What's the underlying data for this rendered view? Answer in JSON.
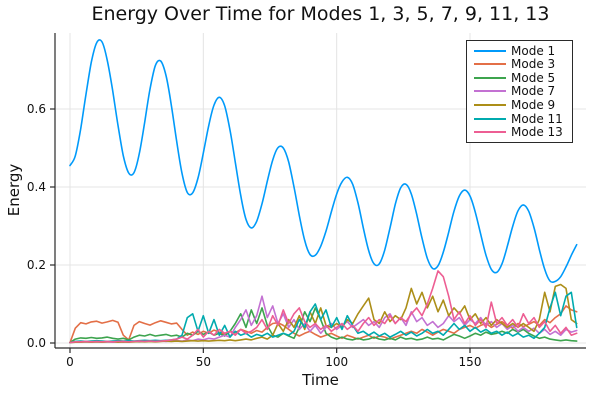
{
  "chart_data": {
    "type": "line",
    "title": "Energy Over Time for Modes 1, 3, 5, 7, 9, 11, 13",
    "xlabel": "Time",
    "ylabel": "Energy",
    "xlim": [
      -5.6,
      193.5
    ],
    "ylim": [
      -0.013,
      0.795
    ],
    "grid": true,
    "legend_position": "top-right",
    "xticks": {
      "values": [
        0,
        50,
        100,
        150
      ],
      "labels": [
        "0",
        "50",
        "100",
        "150"
      ]
    },
    "yticks": {
      "values": [
        0.0,
        0.2,
        0.4,
        0.6
      ],
      "labels": [
        "0.0",
        "0.2",
        "0.4",
        "0.6"
      ]
    },
    "style": {
      "background": "#FFFFFF",
      "grid_color": "#E4E4E4",
      "axis_color": "#2A2A2A",
      "text_color": "#111111",
      "legend_border_color": "#2A2A2A",
      "series_line_width": 1.6
    },
    "x": [
      0,
      2,
      4,
      6,
      8,
      10,
      12,
      14,
      16,
      18,
      20,
      22,
      24,
      26,
      28,
      30,
      32,
      34,
      36,
      38,
      40,
      42,
      44,
      46,
      48,
      50,
      52,
      54,
      56,
      58,
      60,
      62,
      64,
      66,
      68,
      70,
      72,
      74,
      76,
      78,
      80,
      82,
      84,
      86,
      88,
      90,
      92,
      94,
      96,
      98,
      100,
      102,
      104,
      106,
      108,
      110,
      112,
      114,
      116,
      118,
      120,
      122,
      124,
      126,
      128,
      130,
      132,
      134,
      136,
      138,
      140,
      142,
      144,
      146,
      148,
      150,
      152,
      154,
      156,
      158,
      160,
      162,
      164,
      166,
      168,
      170,
      172,
      174,
      176,
      178,
      180,
      182,
      184,
      186,
      188,
      190
    ],
    "series": [
      {
        "name": "Mode 1",
        "color": "#009AFA",
        "smooth": true,
        "values": [
          0.455,
          0.48,
          0.549,
          0.638,
          0.72,
          0.77,
          0.772,
          0.724,
          0.647,
          0.558,
          0.48,
          0.436,
          0.437,
          0.486,
          0.566,
          0.651,
          0.711,
          0.723,
          0.686,
          0.61,
          0.517,
          0.435,
          0.386,
          0.385,
          0.423,
          0.487,
          0.557,
          0.61,
          0.63,
          0.608,
          0.546,
          0.463,
          0.379,
          0.317,
          0.295,
          0.312,
          0.357,
          0.415,
          0.469,
          0.501,
          0.5,
          0.464,
          0.4,
          0.327,
          0.263,
          0.227,
          0.225,
          0.248,
          0.287,
          0.336,
          0.382,
          0.413,
          0.425,
          0.407,
          0.359,
          0.295,
          0.237,
          0.203,
          0.203,
          0.238,
          0.295,
          0.356,
          0.398,
          0.407,
          0.382,
          0.33,
          0.269,
          0.217,
          0.191,
          0.198,
          0.233,
          0.284,
          0.338,
          0.377,
          0.392,
          0.377,
          0.335,
          0.279,
          0.225,
          0.189,
          0.181,
          0.203,
          0.248,
          0.299,
          0.339,
          0.354,
          0.338,
          0.296,
          0.24,
          0.189,
          0.159,
          0.158,
          0.17,
          0.195,
          0.225,
          0.252
        ]
      },
      {
        "name": "Mode 3",
        "color": "#E36F47",
        "smooth": false,
        "values": [
          0.001,
          0.038,
          0.052,
          0.049,
          0.054,
          0.056,
          0.051,
          0.054,
          0.058,
          0.053,
          0.02,
          0.008,
          0.045,
          0.055,
          0.05,
          0.046,
          0.052,
          0.057,
          0.053,
          0.049,
          0.051,
          0.035,
          0.02,
          0.028,
          0.022,
          0.03,
          0.025,
          0.033,
          0.028,
          0.022,
          0.03,
          0.026,
          0.035,
          0.03,
          0.025,
          0.032,
          0.028,
          0.04,
          0.05,
          0.052,
          0.045,
          0.035,
          0.025,
          0.018,
          0.025,
          0.03,
          0.022,
          0.015,
          0.02,
          0.025,
          0.018,
          0.012,
          0.02,
          0.015,
          0.01,
          0.015,
          0.02,
          0.012,
          0.018,
          0.015,
          0.01,
          0.015,
          0.02,
          0.025,
          0.03,
          0.025,
          0.035,
          0.028,
          0.02,
          0.028,
          0.035,
          0.03,
          0.025,
          0.035,
          0.04,
          0.045,
          0.038,
          0.045,
          0.05,
          0.04,
          0.048,
          0.055,
          0.045,
          0.038,
          0.05,
          0.042,
          0.048,
          0.055,
          0.045,
          0.06,
          0.052,
          0.065,
          0.075,
          0.095,
          0.085,
          0.08
        ]
      },
      {
        "name": "Mode 5",
        "color": "#3DA44E",
        "smooth": false,
        "values": [
          0.001,
          0.01,
          0.013,
          0.012,
          0.014,
          0.012,
          0.013,
          0.015,
          0.012,
          0.01,
          0.012,
          0.008,
          0.015,
          0.02,
          0.018,
          0.022,
          0.018,
          0.02,
          0.022,
          0.018,
          0.02,
          0.015,
          0.025,
          0.02,
          0.03,
          0.022,
          0.028,
          0.02,
          0.025,
          0.018,
          0.03,
          0.05,
          0.075,
          0.04,
          0.085,
          0.05,
          0.09,
          0.045,
          0.02,
          0.015,
          0.025,
          0.018,
          0.012,
          0.04,
          0.08,
          0.055,
          0.09,
          0.06,
          0.025,
          0.015,
          0.01,
          0.015,
          0.01,
          0.008,
          0.012,
          0.008,
          0.01,
          0.015,
          0.01,
          0.008,
          0.012,
          0.008,
          0.015,
          0.01,
          0.012,
          0.008,
          0.01,
          0.015,
          0.01,
          0.012,
          0.008,
          0.015,
          0.022,
          0.018,
          0.012,
          0.018,
          0.025,
          0.02,
          0.028,
          0.022,
          0.025,
          0.03,
          0.025,
          0.035,
          0.028,
          0.035,
          0.025,
          0.018,
          0.012,
          0.015,
          0.01,
          0.008,
          0.006,
          0.008,
          0.006,
          0.005
        ]
      },
      {
        "name": "Mode 7",
        "color": "#C371D2",
        "smooth": false,
        "values": [
          0.001,
          0.002,
          0.002,
          0.003,
          0.002,
          0.003,
          0.002,
          0.003,
          0.002,
          0.003,
          0.002,
          0.003,
          0.004,
          0.003,
          0.004,
          0.005,
          0.004,
          0.005,
          0.004,
          0.005,
          0.006,
          0.005,
          0.008,
          0.006,
          0.01,
          0.008,
          0.012,
          0.01,
          0.015,
          0.02,
          0.015,
          0.04,
          0.06,
          0.085,
          0.045,
          0.07,
          0.12,
          0.065,
          0.095,
          0.05,
          0.075,
          0.04,
          0.06,
          0.035,
          0.05,
          0.03,
          0.045,
          0.025,
          0.04,
          0.05,
          0.035,
          0.045,
          0.055,
          0.04,
          0.05,
          0.06,
          0.045,
          0.055,
          0.04,
          0.065,
          0.075,
          0.05,
          0.065,
          0.045,
          0.08,
          0.055,
          0.065,
          0.045,
          0.055,
          0.04,
          0.05,
          0.07,
          0.055,
          0.065,
          0.045,
          0.06,
          0.05,
          0.065,
          0.045,
          0.055,
          0.04,
          0.05,
          0.035,
          0.045,
          0.03,
          0.04,
          0.03,
          0.038,
          0.025,
          0.035,
          0.022,
          0.03,
          0.02,
          0.035,
          0.028,
          0.032
        ]
      },
      {
        "name": "Mode 9",
        "color": "#AC8E18",
        "smooth": false,
        "values": [
          0.001,
          0.002,
          0.002,
          0.003,
          0.002,
          0.003,
          0.002,
          0.003,
          0.003,
          0.002,
          0.003,
          0.002,
          0.003,
          0.004,
          0.003,
          0.004,
          0.003,
          0.004,
          0.005,
          0.004,
          0.005,
          0.004,
          0.005,
          0.006,
          0.005,
          0.006,
          0.005,
          0.006,
          0.007,
          0.006,
          0.008,
          0.006,
          0.008,
          0.01,
          0.008,
          0.012,
          0.015,
          0.01,
          0.02,
          0.05,
          0.03,
          0.06,
          0.04,
          0.07,
          0.035,
          0.08,
          0.05,
          0.09,
          0.045,
          0.04,
          0.05,
          0.04,
          0.06,
          0.05,
          0.075,
          0.095,
          0.115,
          0.06,
          0.05,
          0.08,
          0.055,
          0.07,
          0.06,
          0.09,
          0.14,
          0.1,
          0.13,
          0.09,
          0.12,
          0.08,
          0.11,
          0.07,
          0.09,
          0.075,
          0.095,
          0.06,
          0.075,
          0.05,
          0.065,
          0.045,
          0.06,
          0.05,
          0.04,
          0.05,
          0.04,
          0.05,
          0.04,
          0.03,
          0.06,
          0.13,
          0.08,
          0.145,
          0.15,
          0.14,
          0.06,
          0.05
        ]
      },
      {
        "name": "Mode 11",
        "color": "#00AAAE",
        "smooth": false,
        "values": [
          0.001,
          0.004,
          0.005,
          0.004,
          0.005,
          0.006,
          0.005,
          0.004,
          0.005,
          0.006,
          0.005,
          0.006,
          0.005,
          0.006,
          0.007,
          0.006,
          0.007,
          0.006,
          0.007,
          0.008,
          0.01,
          0.02,
          0.065,
          0.075,
          0.03,
          0.07,
          0.025,
          0.06,
          0.02,
          0.045,
          0.015,
          0.03,
          0.02,
          0.025,
          0.015,
          0.022,
          0.018,
          0.025,
          0.015,
          0.02,
          0.025,
          0.02,
          0.03,
          0.06,
          0.04,
          0.08,
          0.1,
          0.06,
          0.085,
          0.04,
          0.065,
          0.035,
          0.07,
          0.045,
          0.025,
          0.03,
          0.02,
          0.028,
          0.018,
          0.025,
          0.015,
          0.022,
          0.03,
          0.02,
          0.028,
          0.018,
          0.025,
          0.035,
          0.025,
          0.03,
          0.02,
          0.035,
          0.05,
          0.035,
          0.045,
          0.03,
          0.04,
          0.028,
          0.035,
          0.025,
          0.03,
          0.02,
          0.028,
          0.018,
          0.025,
          0.015,
          0.02,
          0.012,
          0.025,
          0.04,
          0.09,
          0.13,
          0.07,
          0.12,
          0.13,
          0.04
        ]
      },
      {
        "name": "Mode 13",
        "color": "#ED5E93",
        "smooth": false,
        "values": [
          0.001,
          0.003,
          0.003,
          0.004,
          0.003,
          0.004,
          0.003,
          0.004,
          0.003,
          0.004,
          0.004,
          0.003,
          0.004,
          0.005,
          0.004,
          0.005,
          0.004,
          0.005,
          0.006,
          0.008,
          0.01,
          0.015,
          0.01,
          0.02,
          0.035,
          0.015,
          0.03,
          0.02,
          0.035,
          0.025,
          0.03,
          0.02,
          0.035,
          0.025,
          0.03,
          0.04,
          0.06,
          0.035,
          0.07,
          0.045,
          0.085,
          0.05,
          0.075,
          0.09,
          0.055,
          0.04,
          0.05,
          0.035,
          0.045,
          0.03,
          0.04,
          0.05,
          0.035,
          0.045,
          0.03,
          0.05,
          0.065,
          0.045,
          0.06,
          0.05,
          0.07,
          0.05,
          0.065,
          0.055,
          0.075,
          0.09,
          0.07,
          0.1,
          0.14,
          0.185,
          0.17,
          0.12,
          0.06,
          0.08,
          0.05,
          0.07,
          0.045,
          0.06,
          0.04,
          0.105,
          0.05,
          0.065,
          0.045,
          0.06,
          0.04,
          0.075,
          0.05,
          0.065,
          0.04,
          0.055,
          0.03,
          0.045,
          0.025,
          0.04,
          0.02,
          0.025
        ]
      }
    ]
  }
}
